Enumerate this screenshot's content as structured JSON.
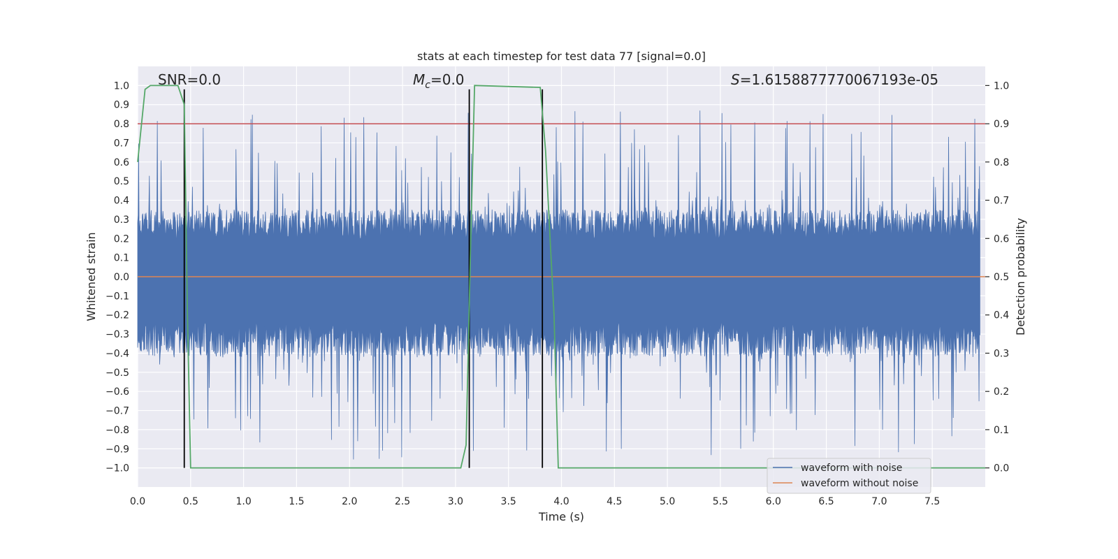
{
  "chart_data": {
    "type": "line",
    "title": "stats at each timestep for test data 77 [signal=0.0]",
    "xlabel": "Time (s)",
    "ylabel": "Whitened strain",
    "y2label": "Detection probability",
    "xlim": [
      0.0,
      8.0
    ],
    "ylim": [
      -1.1,
      1.1
    ],
    "y2lim": [
      -0.05,
      1.05
    ],
    "xticks": [
      0.0,
      0.5,
      1.0,
      1.5,
      2.0,
      2.5,
      3.0,
      3.5,
      4.0,
      4.5,
      5.0,
      5.5,
      6.0,
      6.5,
      7.0,
      7.5
    ],
    "xtick_labels": [
      "0.0",
      "0.5",
      "1.0",
      "1.5",
      "2.0",
      "2.5",
      "3.0",
      "3.5",
      "4.0",
      "4.5",
      "5.0",
      "5.5",
      "6.0",
      "6.5",
      "7.0",
      "7.5"
    ],
    "yticks": [
      1.0,
      0.9,
      0.8,
      0.7,
      0.6,
      0.5,
      0.4,
      0.3,
      0.2,
      0.1,
      0.0,
      -0.1,
      -0.2,
      -0.3,
      -0.4,
      -0.5,
      -0.6,
      -0.7,
      -0.8,
      -0.9,
      -1.0
    ],
    "ytick_labels": [
      "1.0",
      "0.9",
      "0.8",
      "0.7",
      "0.6",
      "0.5",
      "0.4",
      "0.3",
      "0.2",
      "0.1",
      "0.0",
      "−0.1",
      "−0.2",
      "−0.3",
      "−0.4",
      "−0.5",
      "−0.6",
      "−0.7",
      "−0.8",
      "−0.9",
      "−1.0"
    ],
    "y2ticks": [
      1.0,
      0.9,
      0.8,
      0.7,
      0.6,
      0.5,
      0.4,
      0.3,
      0.2,
      0.1,
      0.0
    ],
    "y2tick_labels": [
      "1.0",
      "0.9",
      "0.8",
      "0.7",
      "0.6",
      "0.5",
      "0.4",
      "0.3",
      "0.2",
      "0.1",
      "0.0"
    ],
    "annotations": {
      "snr": "SNR=0.0",
      "mc_symbol": "M",
      "mc_sub": "c",
      "mc_value": "=0.0",
      "s_symbol": "S",
      "s_value": "=1.6158877770067193e-05"
    },
    "noise_waveform": {
      "name": "waveform with noise",
      "color": "#4c72b0",
      "typical_upper_envelope": 0.35,
      "typical_lower_envelope": -0.42,
      "peak_max": 0.87,
      "peak_min": -0.97
    },
    "clean_waveform": {
      "name": "waveform without noise",
      "color": "#dd8452",
      "value": 0.0
    },
    "threshold": {
      "value": 0.9,
      "axis": "right",
      "color": "#c44e52"
    },
    "probability": {
      "color": "#55a868",
      "x": [
        0.0,
        0.07,
        0.12,
        0.38,
        0.44,
        0.47,
        0.5,
        3.05,
        3.1,
        3.14,
        3.18,
        3.8,
        3.85,
        3.93,
        3.97,
        8.0
      ],
      "y": [
        0.8,
        0.99,
        1.0,
        1.0,
        0.95,
        0.4,
        0.0,
        0.0,
        0.06,
        0.55,
        1.0,
        0.995,
        0.83,
        0.4,
        0.0,
        0.0
      ]
    },
    "vertical_markers": {
      "color": "#000000",
      "x": [
        0.44,
        3.13,
        3.82
      ],
      "y_from": -1.0,
      "y_to": 0.98
    },
    "legend": {
      "position": "lower-right",
      "entries": [
        {
          "label": "waveform with noise",
          "color": "#4c72b0"
        },
        {
          "label": "waveform without noise",
          "color": "#dd8452"
        }
      ]
    }
  }
}
